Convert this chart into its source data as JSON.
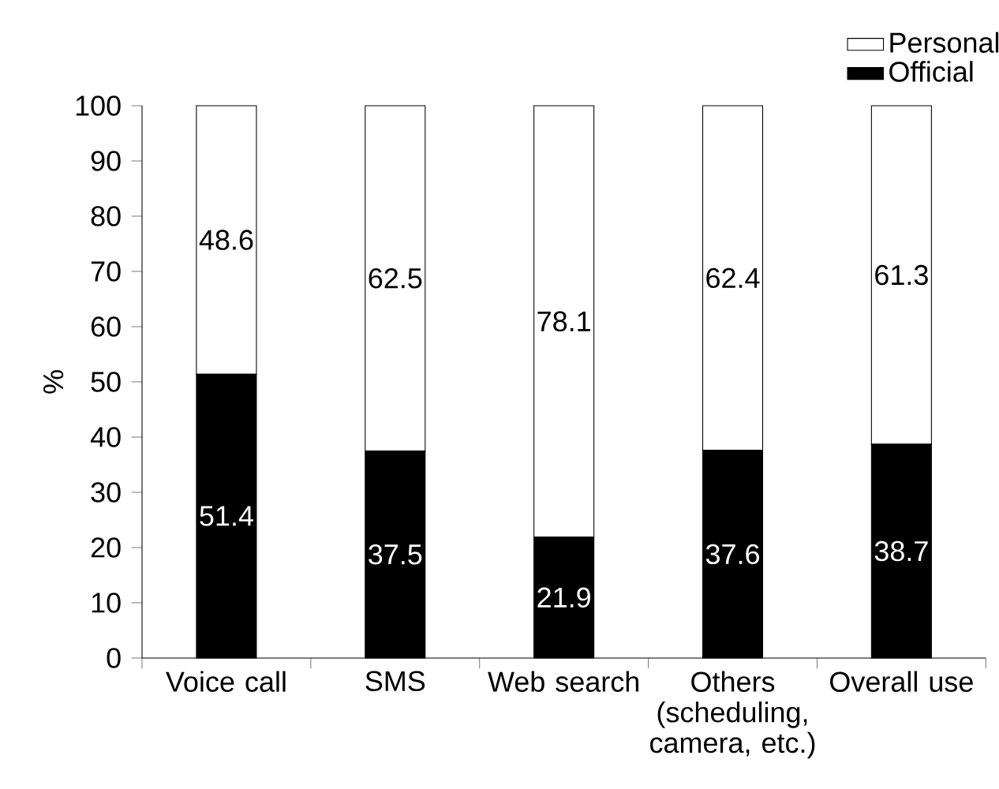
{
  "chart_data": {
    "type": "bar",
    "stacked": true,
    "ylabel": "%",
    "categories": [
      "Voice call",
      "SMS",
      "Web search",
      "Others (scheduling, camera, etc.)",
      "Overall use"
    ],
    "series": [
      {
        "name": "Official",
        "color": "#000000",
        "values": [
          51.4,
          37.5,
          21.9,
          37.6,
          38.7
        ]
      },
      {
        "name": "Personal",
        "color": "#ffffff",
        "values": [
          48.6,
          62.5,
          78.1,
          62.4,
          61.3
        ]
      }
    ],
    "ylim": [
      0,
      100
    ],
    "yticks": [
      0,
      10,
      20,
      30,
      40,
      50,
      60,
      70,
      80,
      90,
      100
    ],
    "data_labels": true,
    "legend": "top right",
    "grid": false
  }
}
